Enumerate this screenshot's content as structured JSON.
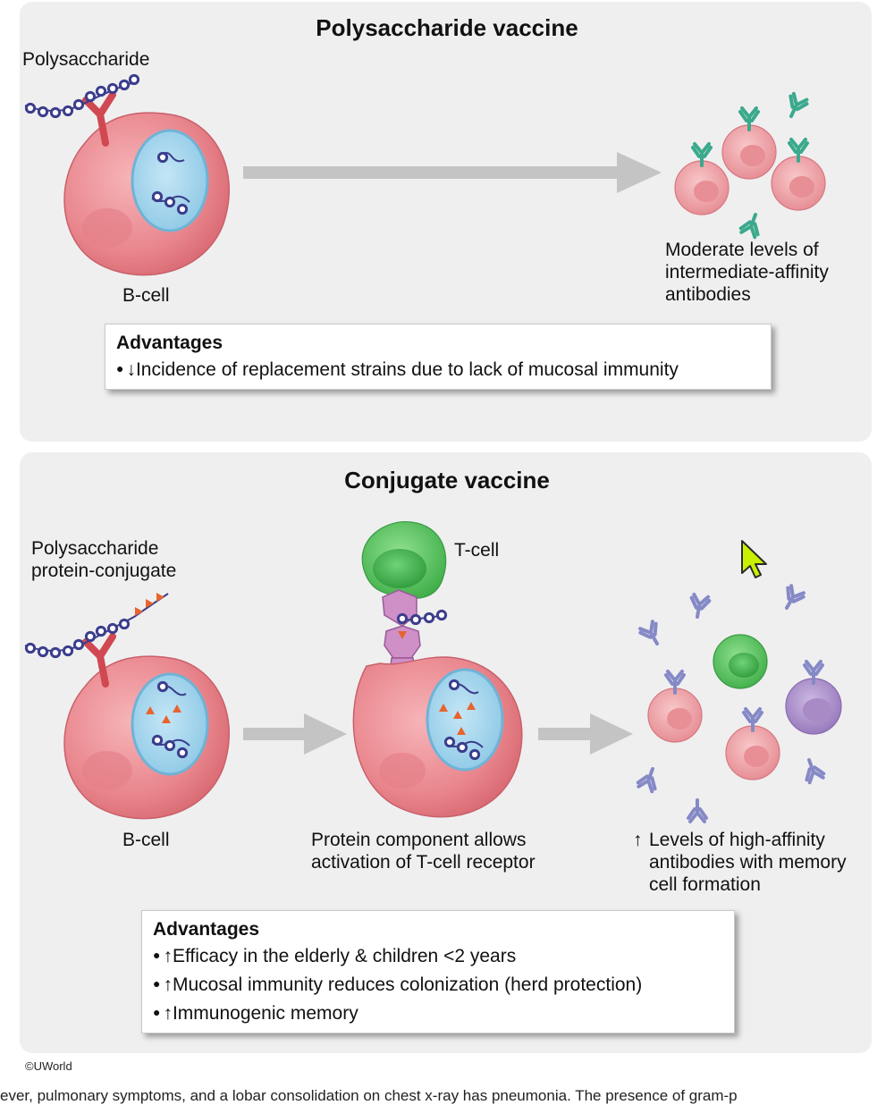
{
  "top": {
    "title": "Polysaccharide vaccine",
    "polysaccharide_label": "Polysaccharide",
    "bcell_label": "B-cell",
    "result_label": "Moderate levels of\nintermediate-affinity\nantibodies",
    "advantages_title": "Advantages",
    "advantages": [
      {
        "arrow": "↓",
        "text": "Incidence of replacement strains due to lack of mucosal immunity"
      }
    ]
  },
  "bottom": {
    "title": "Conjugate vaccine",
    "conjugate_label": "Polysaccharide\nprotein-conjugate",
    "tcell_label": "T-cell",
    "bcell_label": "B-cell",
    "activation_label": "Protein component allows\nactivation of T-cell receptor",
    "result_arrow": "↑",
    "result_label": "Levels of high-affinity\nantibodies with memory\ncell formation",
    "advantages_title": "Advantages",
    "advantages": [
      {
        "arrow": "↑",
        "text": "Efficacy in the elderly & children <2 years"
      },
      {
        "arrow": "↑",
        "text": "Mucosal immunity reduces colonization (herd protection)"
      },
      {
        "arrow": "↑",
        "text": "Immunogenic memory"
      }
    ]
  },
  "copyright": "©UWorld",
  "footer_text": "ever, pulmonary symptoms, and a lobar consolidation on chest x-ray has pneumonia. The presence of gram-p",
  "colors": {
    "panel_bg": "#efeff0",
    "bcell": "#e8828a",
    "nucleus": "#a9d8ee",
    "tcell": "#5cc463",
    "memory_cell": "#a88ac4",
    "polysaccharide_bead": "#3b3d8c",
    "protein_triangle": "#e8642c",
    "antibody_green": "#3aa98c",
    "antibody_purple": "#8589c6",
    "arrow_gray": "#c4c4c4",
    "cursor": "#c8f000"
  }
}
